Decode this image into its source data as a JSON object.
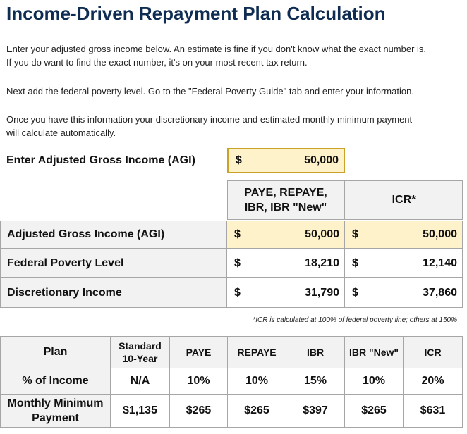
{
  "title": "Income-Driven Repayment Plan Calculation",
  "intro": {
    "line1": "Enter your adjusted gross income below. An estimate is fine if you don't know what the exact number is.",
    "line2": "If you do want to find the exact number, it's on your most recent tax return.",
    "line3": "Next add the federal poverty level. Go to the \"Federal Poverty Guide\" tab and enter your information.",
    "line4": "Once you have this information your discretionary income and estimated monthly minimum payment",
    "line5": "will calculate automatically."
  },
  "agi_input": {
    "label": "Enter Adjusted Gross Income (AGI)",
    "currency": "$",
    "value": "50,000"
  },
  "comparison": {
    "col1_header_line1": "PAYE, REPAYE,",
    "col1_header_line2": "IBR, IBR \"New\"",
    "col2_header": "ICR*",
    "rows": [
      {
        "label": "Adjusted Gross Income (AGI)",
        "c1": "50,000",
        "c2": "50,000"
      },
      {
        "label": "Federal Poverty Level",
        "c1": "18,210",
        "c2": "12,140"
      },
      {
        "label": "Discretionary Income",
        "c1": "31,790",
        "c2": "37,860"
      }
    ],
    "currency": "$",
    "footnote": "*ICR is calculated at 100% of federal poverty line; others at 150%"
  },
  "plans": {
    "row_header": "Plan",
    "headers": [
      "Standard 10-Year",
      "PAYE",
      "REPAYE",
      "IBR",
      "IBR \"New\"",
      "ICR"
    ],
    "std_line1": "Standard",
    "std_line2": "10-Year",
    "pct_label": "% of Income",
    "pct_values": [
      "N/A",
      "10%",
      "10%",
      "15%",
      "10%",
      "20%"
    ],
    "payment_label_line1": "Monthly Minimum",
    "payment_label_line2": "Payment",
    "payment_values": [
      "$1,135",
      "$265",
      "$265",
      "$397",
      "$265",
      "$631"
    ]
  },
  "colors": {
    "title": "#0f2d52",
    "input_fill": "#fef2cb",
    "input_border": "#c9a227",
    "grey_fill": "#f2f2f2"
  }
}
